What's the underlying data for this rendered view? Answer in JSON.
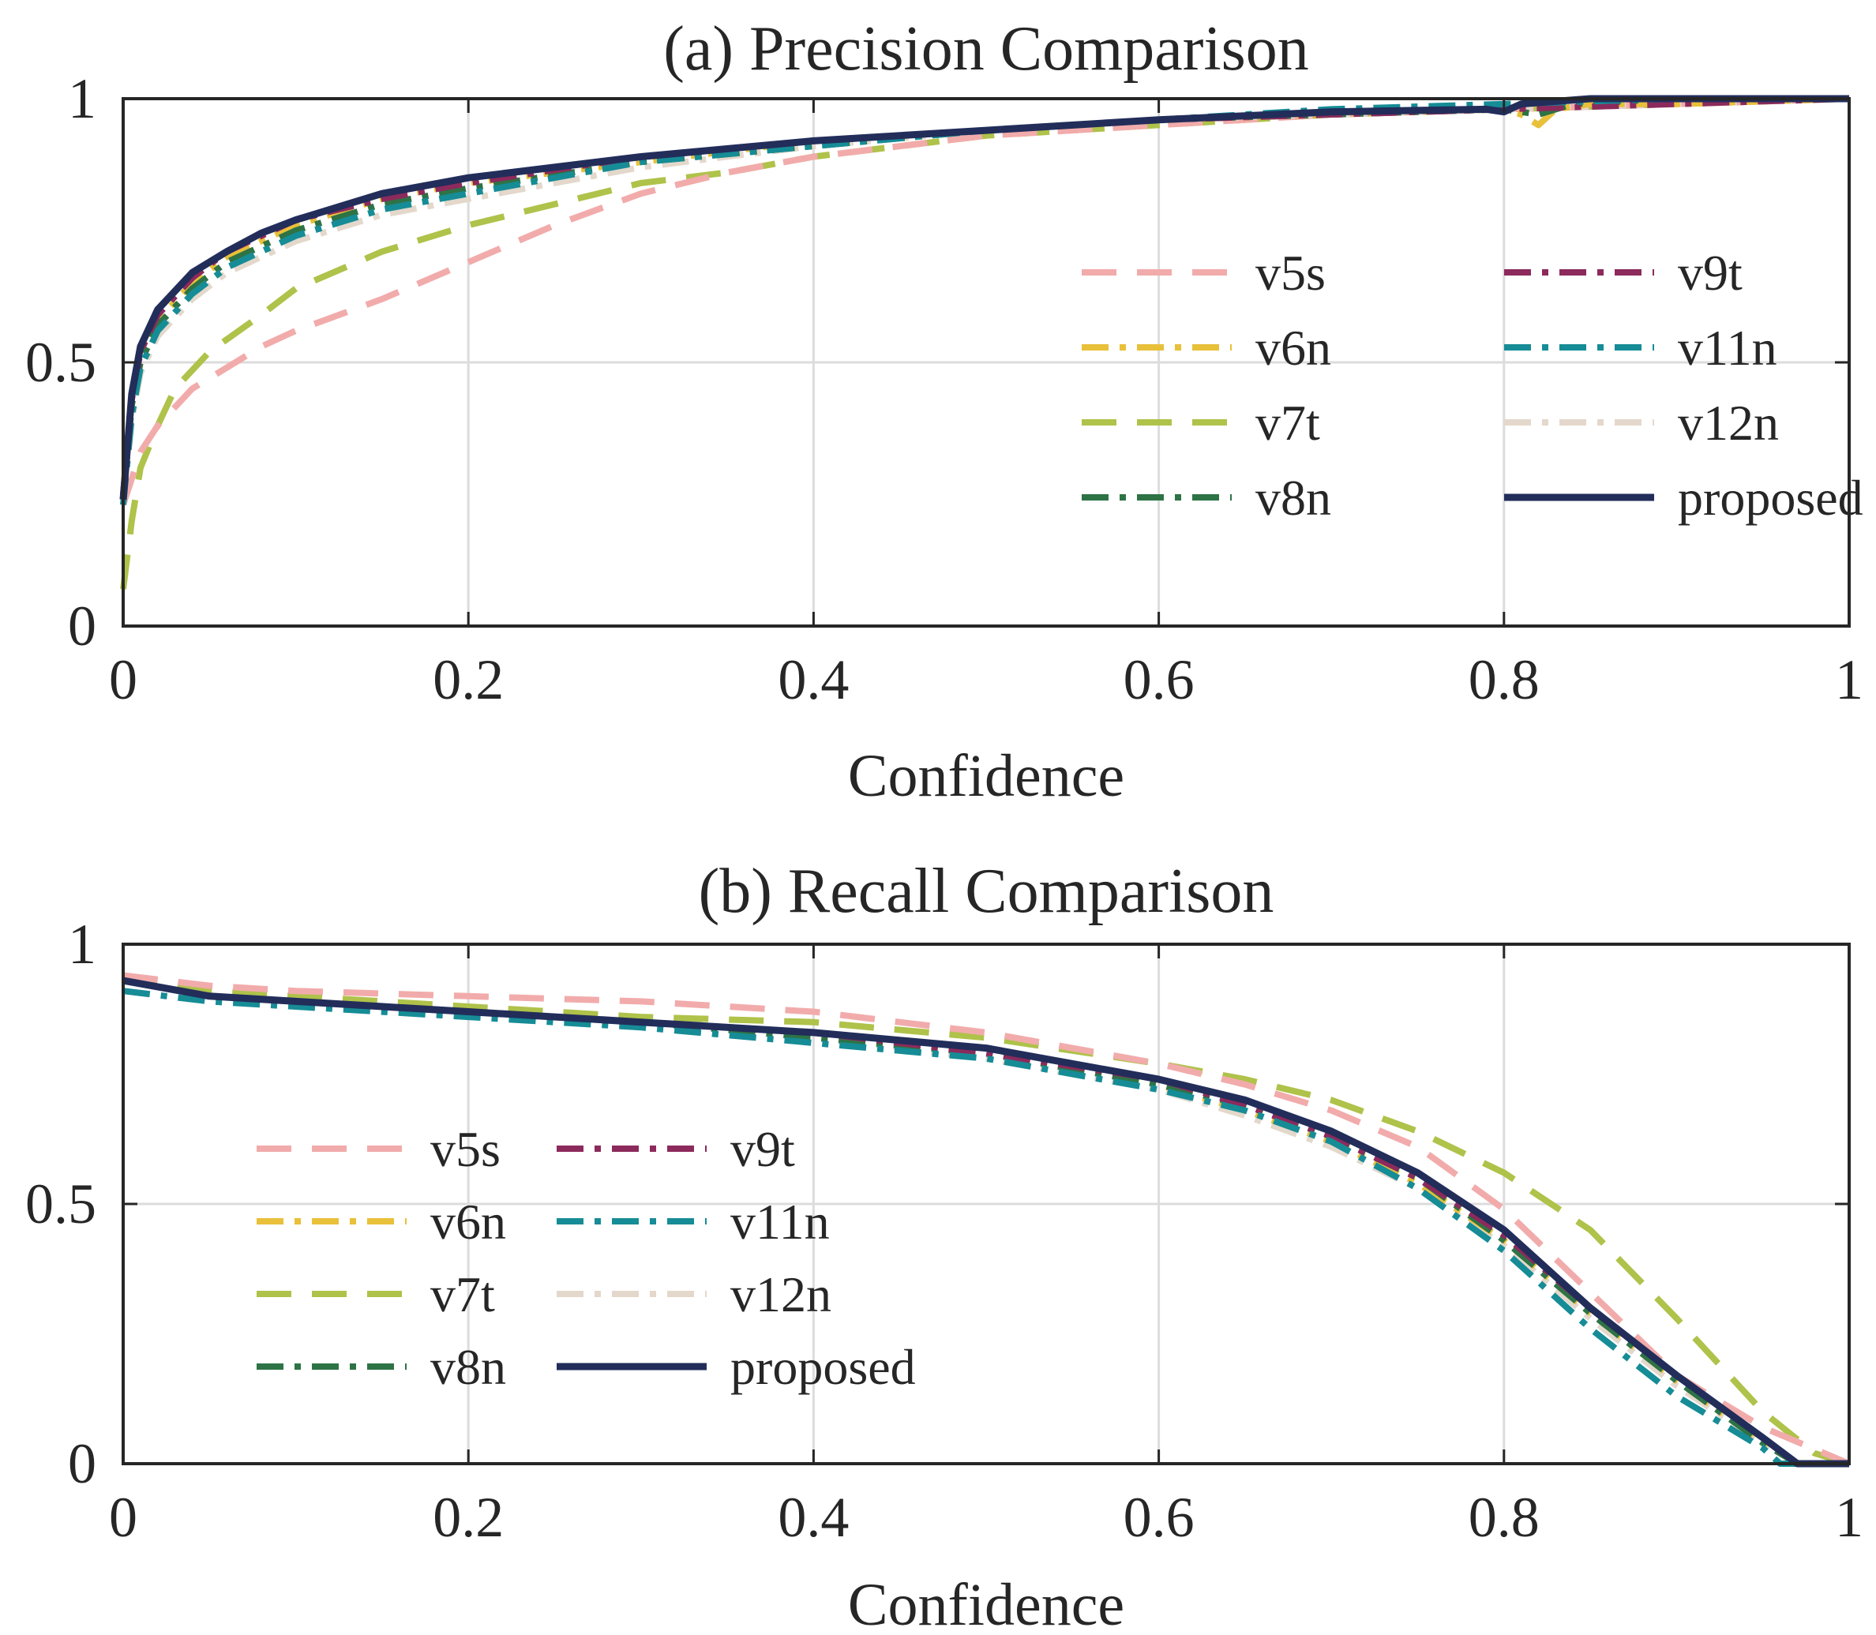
{
  "chart_data": [
    {
      "type": "line",
      "title": "(a) Precision Comparison",
      "xlabel": "Confidence",
      "ylabel": "",
      "xlim": [
        0,
        1
      ],
      "ylim": [
        0,
        1
      ],
      "grid": true,
      "legend_position": "right-center",
      "legend_columns": 2,
      "xticks": [
        "0",
        "0.2",
        "0.4",
        "0.6",
        "0.8",
        "1"
      ],
      "yticks": [
        "0",
        "0.5",
        "1"
      ],
      "series": [
        {
          "name": "v5s",
          "color": "#F2ABAB",
          "style": "dashed",
          "x": [
            0,
            0.01,
            0.02,
            0.04,
            0.06,
            0.08,
            0.1,
            0.15,
            0.2,
            0.25,
            0.3,
            0.35,
            0.4,
            0.5,
            0.6,
            0.7,
            0.8,
            0.9,
            1.0
          ],
          "y": [
            0.23,
            0.33,
            0.38,
            0.45,
            0.49,
            0.53,
            0.56,
            0.62,
            0.69,
            0.76,
            0.82,
            0.86,
            0.89,
            0.93,
            0.95,
            0.97,
            0.98,
            0.99,
            1.0
          ]
        },
        {
          "name": "v6n",
          "color": "#E8C03A",
          "style": "dashdot",
          "x": [
            0,
            0.005,
            0.01,
            0.02,
            0.04,
            0.06,
            0.08,
            0.1,
            0.15,
            0.2,
            0.3,
            0.4,
            0.5,
            0.6,
            0.7,
            0.78,
            0.8,
            0.81,
            0.82,
            0.83,
            0.85,
            0.9,
            1.0
          ],
          "y": [
            0.24,
            0.42,
            0.51,
            0.58,
            0.65,
            0.7,
            0.73,
            0.76,
            0.81,
            0.84,
            0.88,
            0.92,
            0.94,
            0.96,
            0.97,
            0.98,
            0.98,
            0.97,
            0.95,
            0.98,
            0.99,
            0.99,
            1.0
          ]
        },
        {
          "name": "v7t",
          "color": "#AFC24A",
          "style": "dashed",
          "x": [
            0,
            0.005,
            0.01,
            0.02,
            0.03,
            0.05,
            0.08,
            0.1,
            0.15,
            0.2,
            0.25,
            0.3,
            0.35,
            0.4,
            0.5,
            0.6,
            0.7,
            0.8,
            0.9,
            1.0
          ],
          "y": [
            0.07,
            0.2,
            0.3,
            0.38,
            0.45,
            0.52,
            0.59,
            0.64,
            0.71,
            0.76,
            0.8,
            0.84,
            0.86,
            0.89,
            0.93,
            0.95,
            0.97,
            0.98,
            0.99,
            1.0
          ]
        },
        {
          "name": "v8n",
          "color": "#2E7345",
          "style": "dashdot",
          "x": [
            0,
            0.005,
            0.01,
            0.02,
            0.04,
            0.06,
            0.08,
            0.1,
            0.15,
            0.2,
            0.3,
            0.4,
            0.5,
            0.6,
            0.7,
            0.8,
            0.82,
            0.83,
            0.84,
            0.9,
            1.0
          ],
          "y": [
            0.24,
            0.42,
            0.5,
            0.57,
            0.64,
            0.69,
            0.72,
            0.75,
            0.8,
            0.83,
            0.88,
            0.91,
            0.94,
            0.96,
            0.97,
            0.98,
            0.97,
            0.98,
            0.99,
            1.0,
            1.0
          ]
        },
        {
          "name": "v9t",
          "color": "#8C2A5C",
          "style": "dashdot",
          "x": [
            0,
            0.005,
            0.01,
            0.02,
            0.04,
            0.06,
            0.08,
            0.1,
            0.15,
            0.2,
            0.3,
            0.4,
            0.5,
            0.6,
            0.7,
            0.8,
            0.9,
            1.0
          ],
          "y": [
            0.25,
            0.43,
            0.52,
            0.59,
            0.66,
            0.71,
            0.74,
            0.77,
            0.81,
            0.84,
            0.89,
            0.92,
            0.94,
            0.96,
            0.97,
            0.98,
            0.99,
            1.0
          ]
        },
        {
          "name": "v11n",
          "color": "#168C96",
          "style": "dashdot",
          "x": [
            0,
            0.005,
            0.01,
            0.02,
            0.04,
            0.06,
            0.08,
            0.1,
            0.15,
            0.2,
            0.3,
            0.4,
            0.5,
            0.6,
            0.7,
            0.8,
            0.9,
            1.0
          ],
          "y": [
            0.23,
            0.4,
            0.49,
            0.56,
            0.63,
            0.68,
            0.71,
            0.74,
            0.79,
            0.82,
            0.88,
            0.91,
            0.94,
            0.96,
            0.98,
            0.99,
            1.0,
            1.0
          ]
        },
        {
          "name": "v12n",
          "color": "#E3D8CB",
          "style": "dashdot",
          "x": [
            0,
            0.005,
            0.01,
            0.02,
            0.04,
            0.06,
            0.08,
            0.1,
            0.15,
            0.2,
            0.3,
            0.4,
            0.5,
            0.6,
            0.7,
            0.8,
            0.9,
            1.0
          ],
          "y": [
            0.23,
            0.39,
            0.48,
            0.55,
            0.62,
            0.67,
            0.7,
            0.73,
            0.78,
            0.81,
            0.87,
            0.91,
            0.94,
            0.96,
            0.97,
            0.98,
            0.99,
            1.0
          ]
        },
        {
          "name": "proposed",
          "color": "#222D5A",
          "style": "solid",
          "x": [
            0,
            0.005,
            0.01,
            0.02,
            0.04,
            0.06,
            0.08,
            0.1,
            0.15,
            0.2,
            0.3,
            0.4,
            0.5,
            0.6,
            0.7,
            0.79,
            0.8,
            0.81,
            0.85,
            0.9,
            1.0
          ],
          "y": [
            0.24,
            0.44,
            0.53,
            0.6,
            0.67,
            0.71,
            0.745,
            0.77,
            0.82,
            0.85,
            0.89,
            0.92,
            0.94,
            0.96,
            0.975,
            0.98,
            0.975,
            0.99,
            1.0,
            1.0,
            1.0
          ]
        }
      ]
    },
    {
      "type": "line",
      "title": "(b) Recall Comparison",
      "xlabel": "Confidence",
      "ylabel": "",
      "xlim": [
        0,
        1
      ],
      "ylim": [
        0,
        1
      ],
      "grid": true,
      "legend_position": "left-center",
      "legend_columns": 2,
      "xticks": [
        "0",
        "0.2",
        "0.4",
        "0.6",
        "0.8",
        "1"
      ],
      "yticks": [
        "0",
        "0.5",
        "1"
      ],
      "series": [
        {
          "name": "v5s",
          "color": "#F2ABAB",
          "style": "dashed",
          "x": [
            0,
            0.05,
            0.1,
            0.2,
            0.3,
            0.4,
            0.5,
            0.6,
            0.65,
            0.7,
            0.75,
            0.8,
            0.85,
            0.9,
            0.95,
            1.0
          ],
          "y": [
            0.94,
            0.92,
            0.91,
            0.9,
            0.89,
            0.87,
            0.83,
            0.77,
            0.73,
            0.68,
            0.61,
            0.49,
            0.33,
            0.17,
            0.07,
            0.0
          ]
        },
        {
          "name": "v6n",
          "color": "#E8C03A",
          "style": "dashdot",
          "x": [
            0,
            0.05,
            0.1,
            0.2,
            0.3,
            0.4,
            0.5,
            0.6,
            0.65,
            0.7,
            0.75,
            0.8,
            0.85,
            0.9,
            0.95,
            0.97,
            1.0
          ],
          "y": [
            0.93,
            0.9,
            0.89,
            0.87,
            0.85,
            0.82,
            0.79,
            0.73,
            0.68,
            0.62,
            0.54,
            0.43,
            0.29,
            0.16,
            0.04,
            0.0,
            0.0
          ]
        },
        {
          "name": "v7t",
          "color": "#AFC24A",
          "style": "dashed",
          "x": [
            0,
            0.05,
            0.1,
            0.2,
            0.3,
            0.4,
            0.5,
            0.6,
            0.65,
            0.7,
            0.75,
            0.8,
            0.85,
            0.9,
            0.95,
            0.98,
            1.0
          ],
          "y": [
            0.94,
            0.91,
            0.9,
            0.88,
            0.86,
            0.85,
            0.82,
            0.77,
            0.74,
            0.7,
            0.64,
            0.56,
            0.45,
            0.28,
            0.1,
            0.02,
            0.0
          ]
        },
        {
          "name": "v8n",
          "color": "#2E7345",
          "style": "dashdot",
          "x": [
            0,
            0.05,
            0.1,
            0.2,
            0.3,
            0.4,
            0.5,
            0.6,
            0.65,
            0.7,
            0.75,
            0.8,
            0.85,
            0.9,
            0.95,
            0.97,
            1.0
          ],
          "y": [
            0.93,
            0.9,
            0.89,
            0.87,
            0.85,
            0.82,
            0.79,
            0.73,
            0.69,
            0.63,
            0.55,
            0.43,
            0.29,
            0.16,
            0.04,
            0.0,
            0.0
          ]
        },
        {
          "name": "v9t",
          "color": "#8C2A5C",
          "style": "dashdot",
          "x": [
            0,
            0.05,
            0.1,
            0.2,
            0.3,
            0.4,
            0.5,
            0.6,
            0.65,
            0.7,
            0.75,
            0.8,
            0.85,
            0.9,
            0.95,
            0.97,
            1.0
          ],
          "y": [
            0.93,
            0.9,
            0.89,
            0.87,
            0.85,
            0.83,
            0.79,
            0.74,
            0.69,
            0.63,
            0.55,
            0.44,
            0.3,
            0.17,
            0.05,
            0.0,
            0.0
          ]
        },
        {
          "name": "v11n",
          "color": "#168C96",
          "style": "dashdot",
          "x": [
            0,
            0.05,
            0.1,
            0.2,
            0.3,
            0.4,
            0.5,
            0.6,
            0.65,
            0.7,
            0.75,
            0.8,
            0.85,
            0.9,
            0.95,
            0.96,
            1.0
          ],
          "y": [
            0.91,
            0.89,
            0.88,
            0.86,
            0.84,
            0.81,
            0.78,
            0.72,
            0.68,
            0.62,
            0.53,
            0.41,
            0.26,
            0.13,
            0.03,
            0.0,
            0.0
          ]
        },
        {
          "name": "v12n",
          "color": "#E3D8CB",
          "style": "dashdot",
          "x": [
            0,
            0.05,
            0.1,
            0.2,
            0.3,
            0.4,
            0.5,
            0.6,
            0.65,
            0.7,
            0.75,
            0.8,
            0.85,
            0.9,
            0.95,
            0.97,
            1.0
          ],
          "y": [
            0.93,
            0.9,
            0.89,
            0.87,
            0.85,
            0.82,
            0.78,
            0.72,
            0.67,
            0.61,
            0.53,
            0.42,
            0.28,
            0.15,
            0.04,
            0.0,
            0.0
          ]
        },
        {
          "name": "proposed",
          "color": "#222D5A",
          "style": "solid",
          "x": [
            0,
            0.05,
            0.1,
            0.2,
            0.3,
            0.4,
            0.5,
            0.6,
            0.65,
            0.7,
            0.75,
            0.8,
            0.85,
            0.9,
            0.95,
            0.97,
            1.0
          ],
          "y": [
            0.93,
            0.9,
            0.89,
            0.87,
            0.85,
            0.83,
            0.8,
            0.74,
            0.7,
            0.64,
            0.56,
            0.45,
            0.3,
            0.17,
            0.05,
            0.0,
            0.0
          ]
        }
      ]
    }
  ]
}
